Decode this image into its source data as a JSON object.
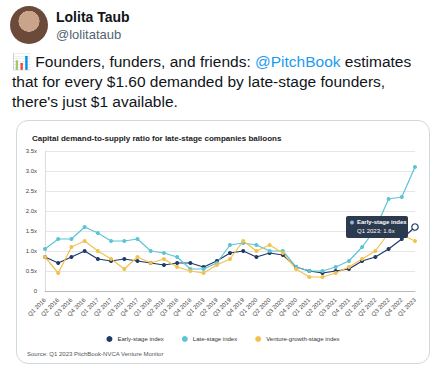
{
  "tweet": {
    "name": "Lolita Taub",
    "handle": "@lolitataub",
    "text": [
      {
        "text": "📊 Founders, funders, and friends: "
      },
      {
        "text": "@PitchBook",
        "link": true
      },
      {
        "text": " estimates that for every $1.60 demanded by late-stage founders, there's just $1 available."
      }
    ]
  },
  "chart_data": {
    "type": "line",
    "title": "Capital demand-to-supply ratio for late-stage companies balloons",
    "source": "Source: Q1 2023 PitchBook-NVCA Venture Monitor",
    "categories": [
      "Q1 2016",
      "Q2 2016",
      "Q3 2016",
      "Q4 2016",
      "Q1 2017",
      "Q2 2017",
      "Q3 2017",
      "Q4 2017",
      "Q1 2018",
      "Q2 2018",
      "Q3 2018",
      "Q4 2018",
      "Q1 2019",
      "Q2 2019",
      "Q3 2019",
      "Q4 2019",
      "Q1 2020",
      "Q2 2020",
      "Q3 2020",
      "Q4 2020",
      "Q1 2021",
      "Q2 2021",
      "Q3 2021",
      "Q4 2021",
      "Q1 2022",
      "Q2 2022",
      "Q3 2022",
      "Q4 2022",
      "Q1 2023"
    ],
    "series": [
      {
        "name": "Early-stage index",
        "color": "#1f3a68",
        "values": [
          0.85,
          0.7,
          0.85,
          1.0,
          0.8,
          0.75,
          0.8,
          0.75,
          0.7,
          0.65,
          0.7,
          0.7,
          0.6,
          0.75,
          0.95,
          1.0,
          0.85,
          0.95,
          0.9,
          0.6,
          0.5,
          0.45,
          0.5,
          0.55,
          0.75,
          0.85,
          1.05,
          1.3,
          1.6
        ]
      },
      {
        "name": "Late-stage index",
        "color": "#5bc4d6",
        "values": [
          1.05,
          1.3,
          1.3,
          1.6,
          1.45,
          1.25,
          1.25,
          1.3,
          1.0,
          0.95,
          0.85,
          0.55,
          0.55,
          0.7,
          1.15,
          1.2,
          1.15,
          1.0,
          1.0,
          0.6,
          0.5,
          0.5,
          0.6,
          0.75,
          1.1,
          1.55,
          2.3,
          2.35,
          3.1
        ]
      },
      {
        "name": "Venture-growth-stage index",
        "color": "#f2c14e",
        "values": [
          0.85,
          0.45,
          1.1,
          1.25,
          1.0,
          0.8,
          0.55,
          0.85,
          0.7,
          0.8,
          0.6,
          0.5,
          0.45,
          0.65,
          0.8,
          1.25,
          1.0,
          1.15,
          0.95,
          0.55,
          0.35,
          0.35,
          0.45,
          0.6,
          0.8,
          1.0,
          1.45,
          1.4,
          1.25
        ]
      }
    ],
    "ylim": [
      0,
      3.5
    ],
    "yticks": [
      0,
      {
        "value": 0.5,
        "label": "0.5x"
      },
      {
        "value": 1,
        "label": "1.0x"
      },
      {
        "value": 1.5,
        "label": "1.5x"
      },
      {
        "value": 2,
        "label": "2.0x"
      },
      {
        "value": 2.5,
        "label": "2.5x"
      },
      {
        "value": 3,
        "label": "3.0x"
      },
      {
        "value": 3.5,
        "label": "3.5x"
      }
    ],
    "grid": true,
    "legend": "bottom",
    "marker": "circle",
    "annotation": {
      "series": "Early-stage index",
      "category": "Q1 2023",
      "title": "Early-stage index",
      "text": "Q1 2023: 1.6x"
    }
  }
}
